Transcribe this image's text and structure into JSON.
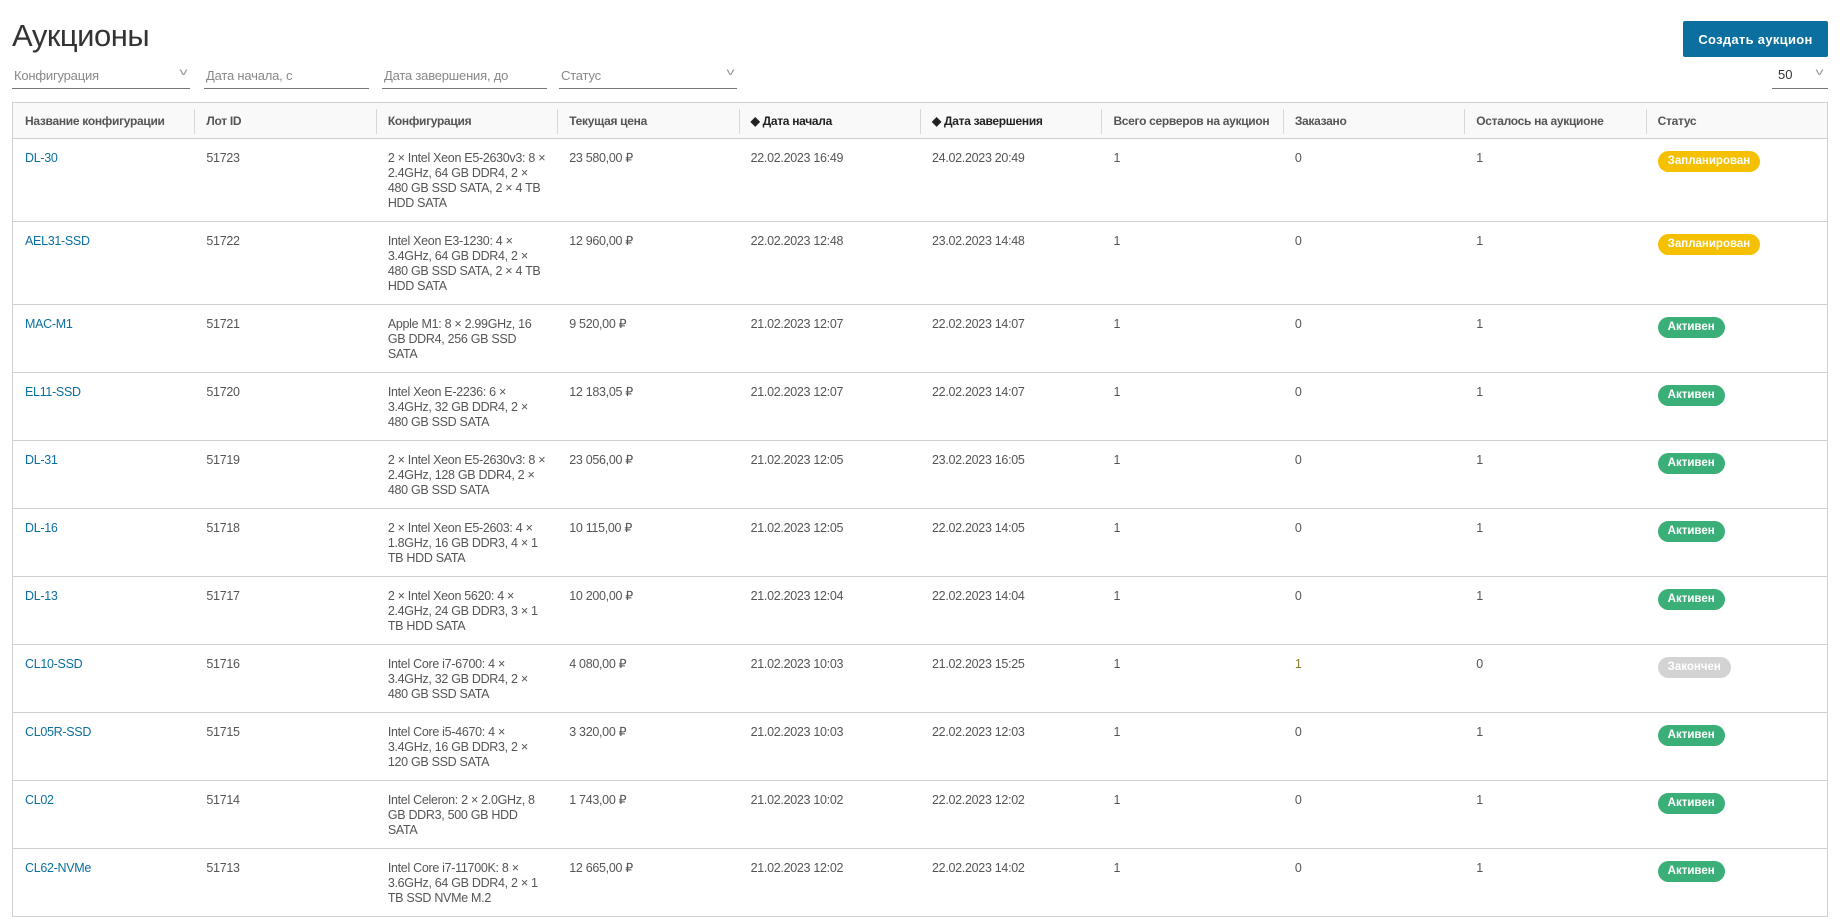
{
  "page": {
    "title": "Аукционы",
    "create_button": "Создать аукцион"
  },
  "filters": {
    "configuration": "Конфигурация",
    "start_date": "Дата начала, с",
    "end_date": "Дата завершения, до",
    "status": "Статус",
    "per_page": "50"
  },
  "colors": {
    "accent": "#0b6fa0",
    "Запланирован": "#f5c000",
    "Активен": "#3aaf78",
    "Закончен": "#d3d3d3"
  },
  "table": {
    "columns": [
      {
        "label": "Название конфигурации",
        "sortable": false
      },
      {
        "label": "Лот ID",
        "sortable": false
      },
      {
        "label": "Конфигурация",
        "sortable": false
      },
      {
        "label": "Текущая цена",
        "sortable": false
      },
      {
        "label": "◆ Дата начала",
        "sortable": true
      },
      {
        "label": "◆ Дата завершения",
        "sortable": true
      },
      {
        "label": "Всего серверов на аукцион",
        "sortable": false
      },
      {
        "label": "Заказано",
        "sortable": false
      },
      {
        "label": "Осталось на аукционе",
        "sortable": false
      },
      {
        "label": "Статус",
        "sortable": false
      }
    ],
    "rows": [
      {
        "name": "DL-30",
        "lot": "51723",
        "config": "2 × Intel Xeon E5-2630v3: 8 × 2.4GHz, 64 GB DDR4, 2 × 480 GB SSD SATA, 2 × 4 TB HDD SATA",
        "price": "23 580,00 ₽",
        "start": "22.02.2023 16:49",
        "end": "24.02.2023 20:49",
        "total": "1",
        "ordered": "0",
        "left": "1",
        "status": "Запланирован"
      },
      {
        "name": "AEL31-SSD",
        "lot": "51722",
        "config": "Intel Xeon E3-1230: 4 × 3.4GHz, 64 GB DDR4, 2 × 480 GB SSD SATA, 2 × 4 TB HDD SATA",
        "price": "12 960,00 ₽",
        "start": "22.02.2023 12:48",
        "end": "23.02.2023 14:48",
        "total": "1",
        "ordered": "0",
        "left": "1",
        "status": "Запланирован"
      },
      {
        "name": "MAC-M1",
        "lot": "51721",
        "config": "Apple M1: 8 × 2.99GHz, 16 GB DDR4, 256 GB SSD SATA",
        "price": "9 520,00 ₽",
        "start": "21.02.2023 12:07",
        "end": "22.02.2023 14:07",
        "total": "1",
        "ordered": "0",
        "left": "1",
        "status": "Активен"
      },
      {
        "name": "EL11-SSD",
        "lot": "51720",
        "config": "Intel Xeon E-2236: 6 × 3.4GHz, 32 GB DDR4, 2 × 480 GB SSD SATA",
        "price": "12 183,05 ₽",
        "start": "21.02.2023 12:07",
        "end": "22.02.2023 14:07",
        "total": "1",
        "ordered": "0",
        "left": "1",
        "status": "Активен"
      },
      {
        "name": "DL-31",
        "lot": "51719",
        "config": "2 × Intel Xeon E5-2630v3: 8 × 2.4GHz, 128 GB DDR4, 2 × 480 GB SSD SATA",
        "price": "23 056,00 ₽",
        "start": "21.02.2023 12:05",
        "end": "23.02.2023 16:05",
        "total": "1",
        "ordered": "0",
        "left": "1",
        "status": "Активен"
      },
      {
        "name": "DL-16",
        "lot": "51718",
        "config": "2 × Intel Xeon E5-2603: 4 × 1.8GHz, 16 GB DDR3, 4 × 1 TB HDD SATA",
        "price": "10 115,00 ₽",
        "start": "21.02.2023 12:05",
        "end": "22.02.2023 14:05",
        "total": "1",
        "ordered": "0",
        "left": "1",
        "status": "Активен"
      },
      {
        "name": "DL-13",
        "lot": "51717",
        "config": "2 × Intel Xeon 5620: 4 × 2.4GHz, 24 GB DDR3, 3 × 1 TB HDD SATA",
        "price": "10 200,00 ₽",
        "start": "21.02.2023 12:04",
        "end": "22.02.2023 14:04",
        "total": "1",
        "ordered": "0",
        "left": "1",
        "status": "Активен"
      },
      {
        "name": "CL10-SSD",
        "lot": "51716",
        "config": "Intel Core i7-6700: 4 × 3.4GHz, 32 GB DDR4, 2 × 480 GB SSD SATA",
        "price": "4 080,00 ₽",
        "start": "21.02.2023 10:03",
        "end": "21.02.2023 15:25",
        "total": "1",
        "ordered": "1",
        "left": "0",
        "status": "Закончен"
      },
      {
        "name": "CL05R-SSD",
        "lot": "51715",
        "config": "Intel Core i5-4670: 4 × 3.4GHz, 16 GB DDR3, 2 × 120 GB SSD SATA",
        "price": "3 320,00 ₽",
        "start": "21.02.2023 10:03",
        "end": "22.02.2023 12:03",
        "total": "1",
        "ordered": "0",
        "left": "1",
        "status": "Активен"
      },
      {
        "name": "CL02",
        "lot": "51714",
        "config": "Intel Celeron: 2 × 2.0GHz, 8 GB DDR3, 500 GB HDD SATA",
        "price": "1 743,00 ₽",
        "start": "21.02.2023 10:02",
        "end": "22.02.2023 12:02",
        "total": "1",
        "ordered": "0",
        "left": "1",
        "status": "Активен"
      },
      {
        "name": "CL62-NVMe",
        "lot": "51713",
        "config": "Intel Core i7-11700K: 8 × 3.6GHz, 64 GB DDR4, 2 × 1 TB SSD NVMe M.2",
        "price": "12 665,00 ₽",
        "start": "21.02.2023 12:02",
        "end": "22.02.2023 14:02",
        "total": "1",
        "ordered": "0",
        "left": "1",
        "status": "Активен"
      }
    ]
  }
}
